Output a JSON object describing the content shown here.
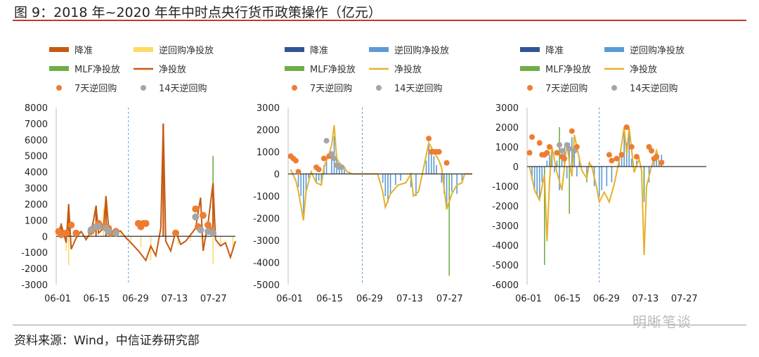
{
  "figure": {
    "title": "图 9：2018 年~2020 年年中时点央行货币政策操作（亿元）",
    "source": "资料来源：Wind，中信证券研究部",
    "watermark": "明晰笔谈"
  },
  "chart_data": [
    {
      "type": "bar",
      "title": "",
      "x_ticks": [
        "06-01",
        "06-15",
        "06-29",
        "07-13",
        "07-27"
      ],
      "ylim": [
        -3000,
        8000
      ],
      "y_ticks": [
        -3000,
        -2000,
        -1000,
        0,
        1000,
        2000,
        3000,
        4000,
        5000,
        6000,
        7000,
        8000
      ],
      "divider_day": 29,
      "legend": [
        {
          "name": "降准",
          "kind": "bar",
          "color": "#c55a11"
        },
        {
          "name": "逆回购净投放",
          "kind": "bar",
          "color": "#ffd966"
        },
        {
          "name": "MLF净投放",
          "kind": "bar",
          "color": "#70ad47"
        },
        {
          "name": "净投放",
          "kind": "line",
          "color": "#c55a11"
        },
        {
          "name": "7天逆回购",
          "kind": "dot",
          "color": "#ed7d31"
        },
        {
          "name": "14天逆回购",
          "kind": "dot",
          "color": "#a5a5a5"
        }
      ],
      "bars_rrr": [
        [
          2,
          800
        ],
        [
          5,
          2000
        ],
        [
          16,
          1900
        ],
        [
          20,
          2500
        ],
        [
          43,
          7000
        ],
        [
          63,
          3300
        ]
      ],
      "bars_rev": [
        [
          1,
          300
        ],
        [
          4,
          -900
        ],
        [
          5,
          -1800
        ],
        [
          8,
          300
        ],
        [
          12,
          -300
        ],
        [
          14,
          500
        ],
        [
          19,
          1700
        ],
        [
          22,
          500
        ],
        [
          26,
          400
        ],
        [
          30,
          -500
        ],
        [
          34,
          -700
        ],
        [
          38,
          -1500
        ],
        [
          44,
          -400
        ],
        [
          49,
          -500
        ],
        [
          54,
          -300
        ],
        [
          59,
          -800
        ],
        [
          63,
          -1700
        ],
        [
          66,
          -500
        ],
        [
          71,
          -700
        ]
      ],
      "bars_mlf": [
        [
          20,
          1600
        ],
        [
          63,
          5000
        ]
      ],
      "net_line": [
        [
          1,
          300
        ],
        [
          2,
          700
        ],
        [
          3,
          200
        ],
        [
          4,
          -400
        ],
        [
          5,
          2000
        ],
        [
          6,
          -800
        ],
        [
          8,
          -100
        ],
        [
          10,
          300
        ],
        [
          12,
          -200
        ],
        [
          14,
          300
        ],
        [
          15,
          1000
        ],
        [
          16,
          1900
        ],
        [
          17,
          200
        ],
        [
          19,
          500
        ],
        [
          20,
          2500
        ],
        [
          21,
          600
        ],
        [
          22,
          300
        ],
        [
          24,
          400
        ],
        [
          26,
          300
        ],
        [
          28,
          -100
        ],
        [
          30,
          -400
        ],
        [
          33,
          -900
        ],
        [
          36,
          -1500
        ],
        [
          38,
          -600
        ],
        [
          40,
          -1200
        ],
        [
          42,
          500
        ],
        [
          43,
          7000
        ],
        [
          44,
          -300
        ],
        [
          46,
          -900
        ],
        [
          48,
          300
        ],
        [
          50,
          -500
        ],
        [
          52,
          -300
        ],
        [
          54,
          100
        ],
        [
          56,
          500
        ],
        [
          58,
          2400
        ],
        [
          59,
          -900
        ],
        [
          61,
          800
        ],
        [
          63,
          3300
        ],
        [
          64,
          -200
        ],
        [
          66,
          -600
        ],
        [
          68,
          -400
        ],
        [
          70,
          -1300
        ],
        [
          72,
          -300
        ]
      ],
      "dots7": [
        [
          1,
          300
        ],
        [
          2,
          100
        ],
        [
          4,
          200
        ],
        [
          6,
          700
        ],
        [
          8,
          200
        ],
        [
          14,
          300
        ],
        [
          15,
          500
        ],
        [
          17,
          800
        ],
        [
          19,
          600
        ],
        [
          20,
          600
        ],
        [
          21,
          500
        ],
        [
          22,
          200
        ],
        [
          24,
          300
        ],
        [
          33,
          800
        ],
        [
          34,
          600
        ],
        [
          35,
          800
        ],
        [
          36,
          800
        ],
        [
          48,
          200
        ],
        [
          56,
          1700
        ],
        [
          57,
          600
        ],
        [
          59,
          1300
        ],
        [
          61,
          700
        ],
        [
          62,
          400
        ]
      ],
      "dots14": [
        [
          14,
          400
        ],
        [
          16,
          600
        ],
        [
          17,
          600
        ],
        [
          20,
          500
        ],
        [
          21,
          300
        ],
        [
          24,
          200
        ],
        [
          56,
          1200
        ],
        [
          58,
          400
        ],
        [
          61,
          300
        ],
        [
          63,
          200
        ]
      ]
    },
    {
      "type": "bar",
      "title": "",
      "x_ticks": [
        "06-01",
        "06-15",
        "06-29",
        "07-13",
        "07-27"
      ],
      "ylim": [
        -5000,
        3000
      ],
      "y_ticks": [
        -5000,
        -4000,
        -3000,
        -2000,
        -1000,
        0,
        1000,
        2000,
        3000
      ],
      "divider_day": 29,
      "legend": [
        {
          "name": "降准",
          "kind": "bar",
          "color": "#2f5597"
        },
        {
          "name": "逆回购净投放",
          "kind": "bar",
          "color": "#5b9bd5"
        },
        {
          "name": "MLF净投放",
          "kind": "bar",
          "color": "#70ad47"
        },
        {
          "name": "净投放",
          "kind": "line",
          "color": "#e6b12c"
        },
        {
          "name": "7天逆回购",
          "kind": "dot",
          "color": "#ed7d31"
        },
        {
          "name": "14天逆回购",
          "kind": "dot",
          "color": "#a5a5a5"
        }
      ],
      "bars_rrr": [],
      "bars_rev": [
        [
          4,
          -600
        ],
        [
          5,
          -1000
        ],
        [
          6,
          -1800
        ],
        [
          7,
          -900
        ],
        [
          8,
          -200
        ],
        [
          11,
          -400
        ],
        [
          12,
          -300
        ],
        [
          13,
          -500
        ],
        [
          14,
          400
        ],
        [
          15,
          600
        ],
        [
          17,
          1000
        ],
        [
          18,
          1700
        ],
        [
          19,
          800
        ],
        [
          20,
          500
        ],
        [
          21,
          300
        ],
        [
          22,
          200
        ],
        [
          24,
          100
        ],
        [
          37,
          -400
        ],
        [
          38,
          -1000
        ],
        [
          39,
          -1300
        ],
        [
          40,
          -900
        ],
        [
          42,
          -500
        ],
        [
          44,
          -300
        ],
        [
          48,
          -600
        ],
        [
          50,
          -1000
        ],
        [
          54,
          600
        ],
        [
          55,
          1400
        ],
        [
          56,
          1000
        ],
        [
          57,
          800
        ],
        [
          58,
          400
        ],
        [
          60,
          -400
        ],
        [
          61,
          -900
        ],
        [
          62,
          -1600
        ],
        [
          64,
          -800
        ],
        [
          66,
          -900
        ],
        [
          68,
          -300
        ]
      ],
      "bars_mlf": [
        [
          63,
          -4600
        ]
      ],
      "net_line": [
        [
          1,
          200
        ],
        [
          3,
          -300
        ],
        [
          4,
          -800
        ],
        [
          6,
          -2100
        ],
        [
          7,
          -800
        ],
        [
          9,
          100
        ],
        [
          11,
          -400
        ],
        [
          13,
          -500
        ],
        [
          14,
          300
        ],
        [
          16,
          900
        ],
        [
          17,
          1300
        ],
        [
          18,
          2200
        ],
        [
          19,
          700
        ],
        [
          20,
          500
        ],
        [
          22,
          300
        ],
        [
          23,
          100
        ],
        [
          25,
          0
        ],
        [
          35,
          0
        ],
        [
          37,
          -800
        ],
        [
          38,
          -1500
        ],
        [
          40,
          -900
        ],
        [
          43,
          -500
        ],
        [
          46,
          -400
        ],
        [
          48,
          0
        ],
        [
          49,
          -1000
        ],
        [
          51,
          -800
        ],
        [
          53,
          300
        ],
        [
          55,
          1400
        ],
        [
          57,
          1000
        ],
        [
          59,
          600
        ],
        [
          60,
          300
        ],
        [
          62,
          -1600
        ],
        [
          64,
          -900
        ],
        [
          66,
          -500
        ],
        [
          68,
          -400
        ],
        [
          69,
          0
        ],
        [
          72,
          0
        ]
      ],
      "dots7": [
        [
          1,
          800
        ],
        [
          2,
          700
        ],
        [
          3,
          600
        ],
        [
          4,
          100
        ],
        [
          11,
          300
        ],
        [
          12,
          200
        ],
        [
          14,
          700
        ],
        [
          16,
          800
        ],
        [
          55,
          1600
        ],
        [
          56,
          1000
        ],
        [
          57,
          1000
        ],
        [
          58,
          1000
        ],
        [
          59,
          1000
        ],
        [
          62,
          500
        ]
      ],
      "dots14": [
        [
          15,
          1500
        ],
        [
          17,
          900
        ],
        [
          18,
          700
        ],
        [
          19,
          400
        ],
        [
          20,
          300
        ],
        [
          21,
          300
        ]
      ]
    },
    {
      "type": "bar",
      "title": "",
      "x_ticks": [
        "06-01",
        "06-15",
        "06-29",
        "07-13",
        "07-27"
      ],
      "ylim": [
        -6000,
        3000
      ],
      "y_ticks": [
        -6000,
        -5000,
        -4000,
        -3000,
        -2000,
        -1000,
        0,
        1000,
        2000,
        3000
      ],
      "divider_day": 29,
      "legend": [
        {
          "name": "降准",
          "kind": "bar",
          "color": "#2f5597"
        },
        {
          "name": "逆回购净投放",
          "kind": "bar",
          "color": "#5b9bd5"
        },
        {
          "name": "MLF净投放",
          "kind": "bar",
          "color": "#70ad47"
        },
        {
          "name": "净投放",
          "kind": "line",
          "color": "#e6b12c"
        },
        {
          "name": "7天逆回购",
          "kind": "dot",
          "color": "#ed7d31"
        },
        {
          "name": "14天逆回购",
          "kind": "dot",
          "color": "#a5a5a5"
        }
      ],
      "bars_rrr": [],
      "bars_rev": [
        [
          2,
          -700
        ],
        [
          3,
          -1200
        ],
        [
          4,
          -1500
        ],
        [
          5,
          -1600
        ],
        [
          6,
          -800
        ],
        [
          8,
          300
        ],
        [
          9,
          600
        ],
        [
          10,
          800
        ],
        [
          11,
          -300
        ],
        [
          12,
          300
        ],
        [
          13,
          -1200
        ],
        [
          14,
          800
        ],
        [
          15,
          1000
        ],
        [
          16,
          -600
        ],
        [
          17,
          1200
        ],
        [
          18,
          1500
        ],
        [
          19,
          900
        ],
        [
          20,
          -500
        ],
        [
          21,
          500
        ],
        [
          24,
          -800
        ],
        [
          27,
          -1000
        ],
        [
          29,
          -1500
        ],
        [
          30,
          -1200
        ],
        [
          32,
          -1000
        ],
        [
          34,
          -800
        ],
        [
          37,
          400
        ],
        [
          38,
          600
        ],
        [
          39,
          1800
        ],
        [
          40,
          1200
        ],
        [
          41,
          1800
        ],
        [
          42,
          400
        ],
        [
          44,
          300
        ],
        [
          47,
          -1800
        ],
        [
          49,
          -800
        ],
        [
          51,
          500
        ],
        [
          52,
          800
        ],
        [
          53,
          300
        ],
        [
          54,
          600
        ]
      ],
      "bars_mlf": [
        [
          7,
          -5000
        ],
        [
          13,
          2000
        ],
        [
          17,
          -2400
        ],
        [
          47,
          -1500
        ]
      ],
      "net_line": [
        [
          1,
          0
        ],
        [
          3,
          -1200
        ],
        [
          5,
          -1700
        ],
        [
          7,
          -400
        ],
        [
          8,
          -3800
        ],
        [
          9,
          -800
        ],
        [
          10,
          1000
        ],
        [
          12,
          -300
        ],
        [
          14,
          -1200
        ],
        [
          16,
          1200
        ],
        [
          17,
          200
        ],
        [
          18,
          -500
        ],
        [
          19,
          1600
        ],
        [
          20,
          1000
        ],
        [
          22,
          -200
        ],
        [
          24,
          -600
        ],
        [
          25,
          200
        ],
        [
          26,
          0
        ],
        [
          28,
          -1100
        ],
        [
          29,
          -1800
        ],
        [
          31,
          -1300
        ],
        [
          33,
          -1800
        ],
        [
          35,
          -900
        ],
        [
          37,
          300
        ],
        [
          39,
          2000
        ],
        [
          40,
          600
        ],
        [
          41,
          2000
        ],
        [
          43,
          -300
        ],
        [
          45,
          400
        ],
        [
          46,
          -200
        ],
        [
          47,
          -4500
        ],
        [
          48,
          -1000
        ],
        [
          50,
          0
        ],
        [
          52,
          800
        ],
        [
          53,
          200
        ],
        [
          55,
          300
        ]
      ],
      "dots7": [
        [
          1,
          700
        ],
        [
          2,
          1500
        ],
        [
          5,
          1200
        ],
        [
          6,
          600
        ],
        [
          7,
          600
        ],
        [
          8,
          700
        ],
        [
          9,
          1000
        ],
        [
          12,
          700
        ],
        [
          14,
          500
        ],
        [
          15,
          400
        ],
        [
          18,
          1800
        ],
        [
          20,
          1000
        ],
        [
          33,
          600
        ],
        [
          34,
          300
        ],
        [
          36,
          400
        ],
        [
          38,
          600
        ],
        [
          40,
          2000
        ],
        [
          42,
          1000
        ],
        [
          44,
          500
        ],
        [
          49,
          1000
        ],
        [
          50,
          800
        ],
        [
          51,
          400
        ],
        [
          52,
          500
        ],
        [
          54,
          200
        ]
      ],
      "dots14": [
        [
          13,
          1100
        ],
        [
          14,
          800
        ],
        [
          16,
          1100
        ],
        [
          17,
          900
        ],
        [
          19,
          800
        ]
      ]
    }
  ]
}
